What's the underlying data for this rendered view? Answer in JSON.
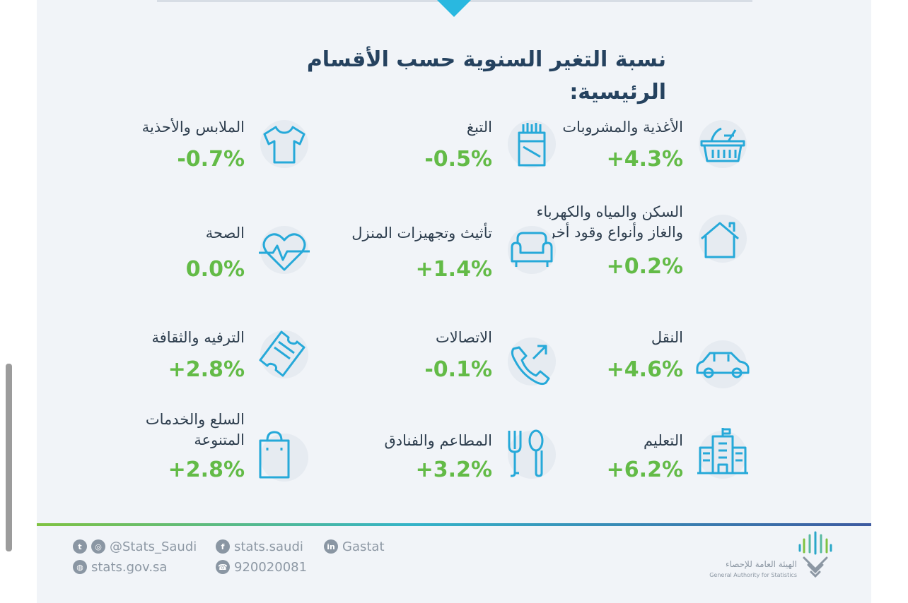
{
  "title": "نسبة التغير السنوية حسب الأقسام الرئيسية:",
  "colors": {
    "value_green": "#63bb47",
    "icon_blue": "#26a9d9",
    "title_navy": "#25425f",
    "arrow_cyan": "#29b8e0"
  },
  "categories": [
    {
      "label": "الأغذية والمشروبات",
      "value": "+4.3%",
      "icon": "basket-icon"
    },
    {
      "label": "التبغ",
      "value": "-0.5%",
      "icon": "cigarette-pack-icon"
    },
    {
      "label": "الملابس والأحذية",
      "value": "-0.7%",
      "icon": "tshirt-icon"
    },
    {
      "label": "السكن والمياه والكهرباء\nوالغاز وأنواع وقود أخرى",
      "value": "+0.2%",
      "icon": "house-icon"
    },
    {
      "label": "تأثيث وتجهيزات المنزل",
      "value": "+1.4%",
      "icon": "armchair-icon"
    },
    {
      "label": "الصحة",
      "value": "0.0%",
      "icon": "heart-pulse-icon"
    },
    {
      "label": "النقل",
      "value": "+4.6%",
      "icon": "car-icon"
    },
    {
      "label": "الاتصالات",
      "value": "-0.1%",
      "icon": "phone-icon"
    },
    {
      "label": "الترفيه والثقافة",
      "value": "+2.8%",
      "icon": "ticket-icon"
    },
    {
      "label": "التعليم",
      "value": "+6.2%",
      "icon": "school-icon"
    },
    {
      "label": "المطاعم والفنادق",
      "value": "+3.2%",
      "icon": "fork-spoon-icon"
    },
    {
      "label": "السلع والخدمات\nالمتنوعة",
      "value": "+2.8%",
      "icon": "shopping-bag-icon"
    }
  ],
  "footer": {
    "twitter_instagram": "@Stats_Saudi",
    "facebook": "stats.saudi",
    "linkedin": "Gastat",
    "website": "stats.gov.sa",
    "phone": "920020081",
    "logo_ar": "الهيئة العامة للإحصاء",
    "logo_en": "General Authority for Statistics"
  }
}
